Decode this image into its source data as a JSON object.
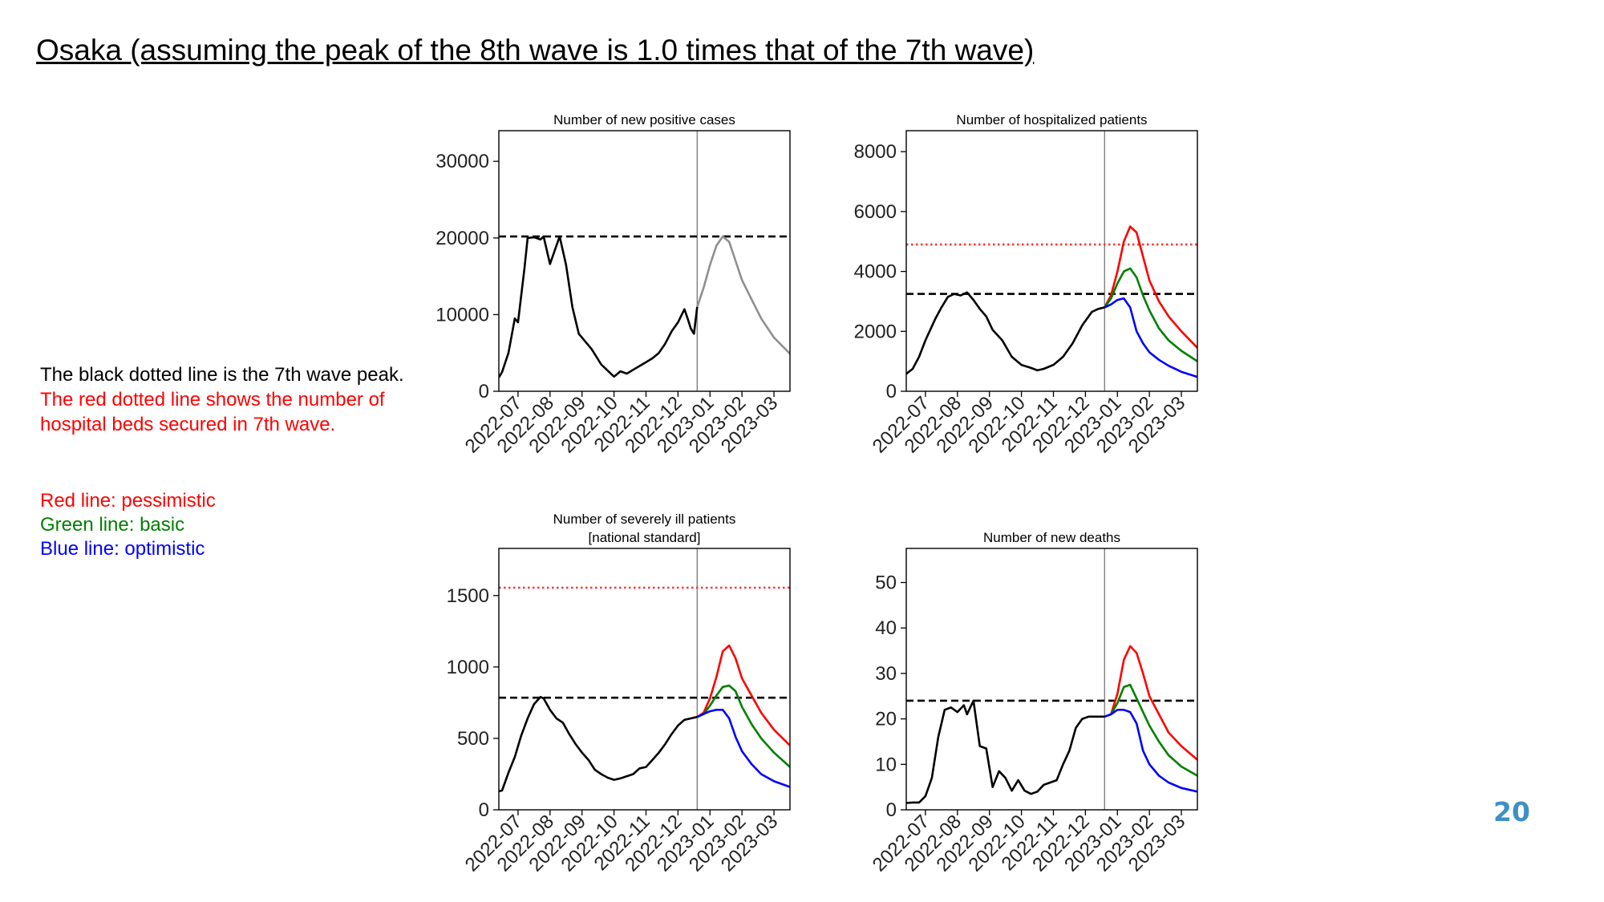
{
  "slide": {
    "title": "Osaka (assuming the peak of the 8th wave is 1.0 times that of the 7th wave)",
    "notes": {
      "black_line": "The black dotted line is the 7th wave peak.",
      "red_line_1": "The red dotted line shows the number of",
      "red_line_2": "hospital beds secured in 7th wave."
    },
    "legend": {
      "pessimistic": "Red line: pessimistic",
      "basic": "Green line: basic",
      "optimistic": "Blue line: optimistic"
    },
    "page_number": "20"
  },
  "colors": {
    "actual": "#000000",
    "projection_single": "#8f8f8f",
    "pessimistic": "#ff0000",
    "basic": "#008000",
    "optimistic": "#0000ff",
    "peak_line": "#000000",
    "beds_line": "#ff3333",
    "present_line": "#808080"
  },
  "chart_data": [
    {
      "type": "line",
      "title": [
        "Number of new positive cases"
      ],
      "x_tick_labels": [
        "2022-07",
        "2022-08",
        "2022-09",
        "2022-10",
        "2022-11",
        "2022-12",
        "2023-01",
        "2023-02",
        "2023-03"
      ],
      "x_range": [
        -0.6,
        8.5
      ],
      "ylim": [
        0,
        34000
      ],
      "yticks": [
        "0",
        "10000",
        "20000",
        "30000"
      ],
      "present_x": 5.6,
      "seventh_wave_peak": 20200,
      "actual": {
        "x": [
          -0.6,
          -0.5,
          -0.3,
          -0.1,
          0.0,
          0.2,
          0.3,
          0.5,
          0.7,
          0.8,
          1.0,
          1.3,
          1.5,
          1.7,
          1.9,
          2.3,
          2.6,
          2.8,
          3.0,
          3.2,
          3.4,
          3.6,
          3.8,
          4.0,
          4.2,
          4.4,
          4.6,
          4.8,
          5.0,
          5.2,
          5.3,
          5.4,
          5.5,
          5.6
        ],
        "y": [
          1800,
          2500,
          5000,
          9500,
          9000,
          16000,
          20000,
          20100,
          19800,
          20200,
          16600,
          20200,
          16500,
          11000,
          7500,
          5500,
          3500,
          2700,
          1900,
          2600,
          2300,
          2800,
          3300,
          3800,
          4300,
          5000,
          6200,
          7800,
          9000,
          10700,
          9500,
          8200,
          7500,
          11000
        ]
      },
      "projection": {
        "x": [
          5.6,
          5.8,
          6.0,
          6.2,
          6.4,
          6.6,
          6.8,
          7.0,
          7.3,
          7.6,
          8.0,
          8.5
        ],
        "y": [
          11000,
          13500,
          16500,
          19000,
          20200,
          19500,
          17000,
          14500,
          12000,
          9500,
          7000,
          4900
        ]
      }
    },
    {
      "type": "line",
      "title": [
        "Number of hospitalized patients"
      ],
      "x_tick_labels": [
        "2022-07",
        "2022-08",
        "2022-09",
        "2022-10",
        "2022-11",
        "2022-12",
        "2023-01",
        "2023-02",
        "2023-03"
      ],
      "x_range": [
        -0.6,
        8.5
      ],
      "ylim": [
        0,
        8700
      ],
      "yticks": [
        "0",
        "2000",
        "4000",
        "6000",
        "8000"
      ],
      "present_x": 5.6,
      "seventh_wave_peak": 3250,
      "hospital_beds_secured": 4900,
      "actual": {
        "x": [
          -0.6,
          -0.4,
          -0.2,
          0.0,
          0.3,
          0.5,
          0.7,
          0.9,
          1.1,
          1.3,
          1.5,
          1.7,
          1.9,
          2.1,
          2.4,
          2.7,
          3.0,
          3.3,
          3.5,
          3.7,
          4.0,
          4.3,
          4.6,
          4.9,
          5.2,
          5.4,
          5.6
        ],
        "y": [
          580,
          750,
          1150,
          1700,
          2400,
          2800,
          3150,
          3250,
          3200,
          3300,
          3050,
          2750,
          2500,
          2050,
          1700,
          1150,
          880,
          780,
          700,
          750,
          880,
          1150,
          1600,
          2200,
          2650,
          2750,
          2800
        ]
      },
      "series": [
        {
          "name": "pessimistic",
          "x": [
            5.6,
            5.8,
            6.0,
            6.2,
            6.4,
            6.6,
            6.8,
            7.0,
            7.3,
            7.6,
            8.0,
            8.5
          ],
          "y": [
            2800,
            3200,
            4000,
            5000,
            5500,
            5300,
            4500,
            3700,
            3000,
            2500,
            2000,
            1450
          ]
        },
        {
          "name": "basic",
          "x": [
            5.6,
            5.8,
            6.0,
            6.2,
            6.4,
            6.6,
            6.8,
            7.0,
            7.3,
            7.6,
            8.0,
            8.5
          ],
          "y": [
            2800,
            3100,
            3600,
            4000,
            4100,
            3800,
            3200,
            2700,
            2100,
            1700,
            1350,
            1000
          ]
        },
        {
          "name": "optimistic",
          "x": [
            5.6,
            5.8,
            6.0,
            6.2,
            6.4,
            6.6,
            6.8,
            7.0,
            7.3,
            7.6,
            8.0,
            8.5
          ],
          "y": [
            2800,
            2900,
            3050,
            3100,
            2800,
            2000,
            1600,
            1300,
            1050,
            850,
            650,
            480
          ]
        }
      ]
    },
    {
      "type": "line",
      "title": [
        "Number of severely ill patients",
        "[national standard]"
      ],
      "x_tick_labels": [
        "2022-07",
        "2022-08",
        "2022-09",
        "2022-10",
        "2022-11",
        "2022-12",
        "2023-01",
        "2023-02",
        "2023-03"
      ],
      "x_range": [
        -0.6,
        8.5
      ],
      "ylim": [
        0,
        1830
      ],
      "yticks": [
        "0",
        "500",
        "1000",
        "1500"
      ],
      "present_x": 5.6,
      "seventh_wave_peak": 785,
      "hospital_beds_secured": 1555,
      "actual": {
        "x": [
          -0.6,
          -0.5,
          -0.3,
          -0.1,
          0.1,
          0.3,
          0.5,
          0.7,
          0.8,
          1.0,
          1.2,
          1.4,
          1.6,
          1.8,
          2.0,
          2.2,
          2.4,
          2.6,
          2.8,
          3.0,
          3.2,
          3.4,
          3.6,
          3.8,
          4.0,
          4.2,
          4.4,
          4.6,
          4.8,
          5.0,
          5.2,
          5.4,
          5.6
        ],
        "y": [
          130,
          135,
          260,
          370,
          520,
          640,
          740,
          790,
          780,
          700,
          640,
          610,
          530,
          460,
          400,
          350,
          280,
          250,
          225,
          210,
          220,
          235,
          250,
          290,
          300,
          350,
          400,
          460,
          530,
          590,
          630,
          640,
          650
        ]
      },
      "series": [
        {
          "name": "pessimistic",
          "x": [
            5.6,
            5.8,
            6.0,
            6.2,
            6.4,
            6.6,
            6.8,
            7.0,
            7.3,
            7.6,
            8.0,
            8.5
          ],
          "y": [
            650,
            680,
            780,
            930,
            1110,
            1150,
            1060,
            920,
            800,
            680,
            560,
            450
          ]
        },
        {
          "name": "basic",
          "x": [
            5.6,
            5.8,
            6.0,
            6.2,
            6.4,
            6.6,
            6.8,
            7.0,
            7.3,
            7.6,
            8.0,
            8.5
          ],
          "y": [
            650,
            670,
            730,
            800,
            860,
            870,
            830,
            720,
            600,
            500,
            400,
            300
          ]
        },
        {
          "name": "optimistic",
          "x": [
            5.6,
            5.8,
            6.0,
            6.2,
            6.4,
            6.6,
            6.8,
            7.0,
            7.3,
            7.6,
            8.0,
            8.5
          ],
          "y": [
            650,
            670,
            690,
            700,
            700,
            640,
            510,
            410,
            320,
            250,
            200,
            160
          ]
        }
      ]
    },
    {
      "type": "line",
      "title": [
        "Number of new deaths"
      ],
      "x_tick_labels": [
        "2022-07",
        "2022-08",
        "2022-09",
        "2022-10",
        "2022-11",
        "2022-12",
        "2023-01",
        "2023-02",
        "2023-03"
      ],
      "x_range": [
        -0.6,
        8.5
      ],
      "ylim": [
        0,
        57.5
      ],
      "yticks": [
        "0",
        "10",
        "20",
        "30",
        "40",
        "50"
      ],
      "present_x": 5.6,
      "seventh_wave_peak": 24,
      "actual": {
        "x": [
          -0.6,
          -0.4,
          -0.2,
          0.0,
          0.2,
          0.4,
          0.6,
          0.8,
          1.0,
          1.2,
          1.3,
          1.5,
          1.7,
          1.9,
          2.1,
          2.3,
          2.5,
          2.7,
          2.9,
          3.1,
          3.3,
          3.5,
          3.7,
          3.9,
          4.1,
          4.3,
          4.5,
          4.7,
          4.9,
          5.1,
          5.3,
          5.5,
          5.6
        ],
        "y": [
          1.5,
          1.6,
          1.6,
          3,
          7,
          16,
          22,
          22.5,
          21.5,
          23,
          21,
          24,
          14,
          13.5,
          5,
          8.5,
          7,
          4.2,
          6.5,
          4.2,
          3.5,
          4,
          5.5,
          6,
          6.5,
          10,
          13,
          18,
          20,
          20.5,
          20.5,
          20.5,
          20.5
        ]
      },
      "series": [
        {
          "name": "pessimistic",
          "x": [
            5.6,
            5.8,
            6.0,
            6.2,
            6.4,
            6.6,
            6.8,
            7.0,
            7.3,
            7.6,
            8.0,
            8.5
          ],
          "y": [
            20.5,
            21,
            25.5,
            33,
            36,
            34.5,
            30,
            25,
            21,
            17,
            14,
            11
          ]
        },
        {
          "name": "basic",
          "x": [
            5.6,
            5.8,
            6.0,
            6.2,
            6.4,
            6.6,
            6.8,
            7.0,
            7.3,
            7.6,
            8.0,
            8.5
          ],
          "y": [
            20.5,
            21,
            23.5,
            27,
            27.5,
            24.5,
            21.5,
            18.5,
            15,
            12,
            9.5,
            7.5
          ]
        },
        {
          "name": "optimistic",
          "x": [
            5.6,
            5.8,
            6.0,
            6.2,
            6.4,
            6.6,
            6.8,
            7.0,
            7.3,
            7.6,
            8.0,
            8.5
          ],
          "y": [
            20.5,
            21,
            22,
            22,
            21.5,
            19,
            13,
            10,
            7.5,
            6,
            4.8,
            4
          ]
        }
      ]
    }
  ]
}
